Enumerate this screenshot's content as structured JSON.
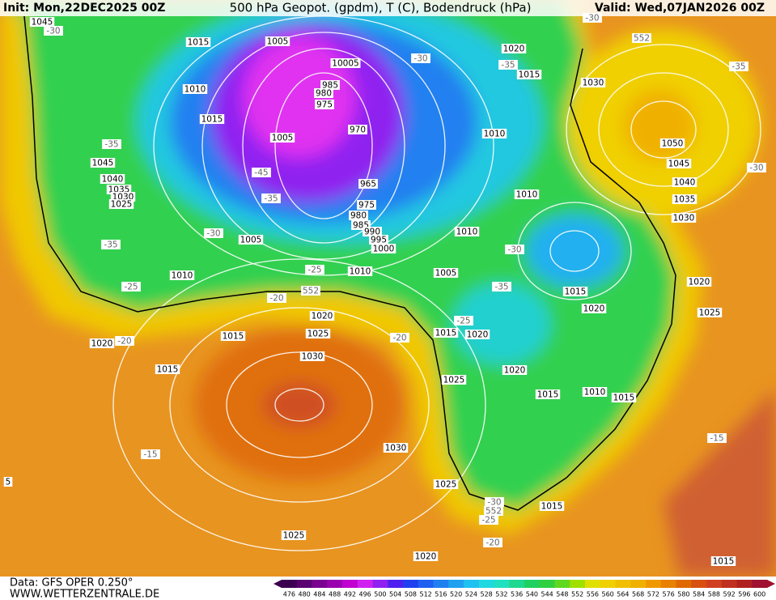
{
  "header": {
    "init": "Init: Mon,22DEC2025 00Z",
    "title": "500 hPa Geopot. (gpdm), T (C), Bodendruck (hPa)",
    "valid": "Valid: Wed,07JAN2026 00Z"
  },
  "footer": {
    "data_source": "Data: GFS OPER 0.250°",
    "website": "WWW.WETTERZENTRALE.DE"
  },
  "colorbar": {
    "values": [
      476,
      480,
      484,
      488,
      492,
      496,
      500,
      504,
      508,
      512,
      516,
      520,
      524,
      528,
      532,
      536,
      540,
      544,
      548,
      552,
      556,
      560,
      564,
      568,
      572,
      576,
      580,
      584,
      588,
      592,
      596,
      600
    ],
    "colors": [
      "#3c0050",
      "#5a0070",
      "#7a0090",
      "#9a00b0",
      "#c000d0",
      "#d020f0",
      "#9020f0",
      "#5020f0",
      "#2040f0",
      "#2060f0",
      "#2080f0",
      "#20a0f0",
      "#20c0f0",
      "#20d8e0",
      "#20e0c0",
      "#20d890",
      "#20d060",
      "#30d040",
      "#60d820",
      "#a0e000",
      "#e0e000",
      "#f0d000",
      "#f0c000",
      "#f0b000",
      "#f09800",
      "#e88000",
      "#e06800",
      "#d85010",
      "#d04020",
      "#c03020",
      "#b02020",
      "#a01030"
    ]
  },
  "map_labels": [
    "1045",
    "-30",
    "1015",
    "1005",
    "10005",
    "1010",
    "1015",
    "985",
    "980",
    "975",
    "970",
    "1005",
    "-35",
    "1045",
    "1040",
    "1035",
    "1030",
    "1025",
    "-45",
    "-35",
    "965",
    "975",
    "980",
    "985",
    "990",
    "995",
    "1000",
    "-30",
    "1005",
    "-35",
    "1010",
    "-25",
    "1010",
    "-25",
    "1005",
    "1010",
    "1010",
    "1010",
    "-30",
    "1020",
    "-35",
    "1015",
    "1030",
    "-30",
    "552",
    "-35",
    "1050",
    "1045",
    "1040",
    "1035",
    "1030",
    "-30",
    "-30",
    "-35",
    "1015",
    "1020",
    "1020",
    "1025",
    "-20",
    "552",
    "1020",
    "1025",
    "1015",
    "1020",
    "-20",
    "1030",
    "-20",
    "1015",
    "-25",
    "1020",
    "1015",
    "1025",
    "1020",
    "1015",
    "1010",
    "1015",
    "-15",
    "1030",
    "1025",
    "-30",
    "552",
    "-25",
    "1015",
    "-15",
    "-20",
    "1025",
    "1020",
    "1015",
    "5"
  ]
}
